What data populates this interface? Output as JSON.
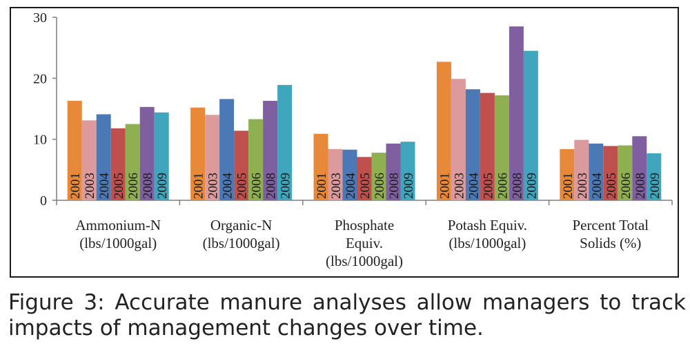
{
  "chart_data": {
    "type": "bar",
    "categories": [
      [
        "Ammonium-N",
        "(lbs/1000gal)"
      ],
      [
        "Organic-N",
        "(lbs/1000gal)"
      ],
      [
        "Phosphate",
        "Equiv.",
        "(lbs/1000gal)"
      ],
      [
        "Potash Equiv.",
        "(lbs/1000gal)"
      ],
      [
        "Percent Total",
        "Solids (%)"
      ]
    ],
    "series": [
      {
        "name": "2001",
        "color": "#e8893a",
        "values": [
          16.3,
          15.2,
          10.9,
          22.7,
          8.4
        ]
      },
      {
        "name": "2003",
        "color": "#dc9a9c",
        "values": [
          13.1,
          14.0,
          8.4,
          19.9,
          9.9
        ]
      },
      {
        "name": "2004",
        "color": "#4a79b6",
        "values": [
          14.1,
          16.6,
          8.3,
          18.2,
          9.3
        ]
      },
      {
        "name": "2005",
        "color": "#c0504d",
        "values": [
          11.8,
          11.4,
          7.1,
          17.6,
          8.9
        ]
      },
      {
        "name": "2006",
        "color": "#8fb050",
        "values": [
          12.5,
          13.3,
          7.8,
          17.2,
          9.0
        ]
      },
      {
        "name": "2008",
        "color": "#7f5fa0",
        "values": [
          15.3,
          16.3,
          9.3,
          28.5,
          10.5
        ]
      },
      {
        "name": "2009",
        "color": "#3fa6bd",
        "values": [
          14.4,
          18.9,
          9.6,
          24.5,
          7.7
        ]
      }
    ],
    "ylim": [
      0,
      30
    ],
    "yticks": [
      0,
      10,
      20,
      30
    ],
    "grid": false,
    "legend": "none",
    "xlabel": "",
    "ylabel": ""
  },
  "caption": "Figure 3: Accurate manure analyses allow managers to track impacts of management changes over time."
}
